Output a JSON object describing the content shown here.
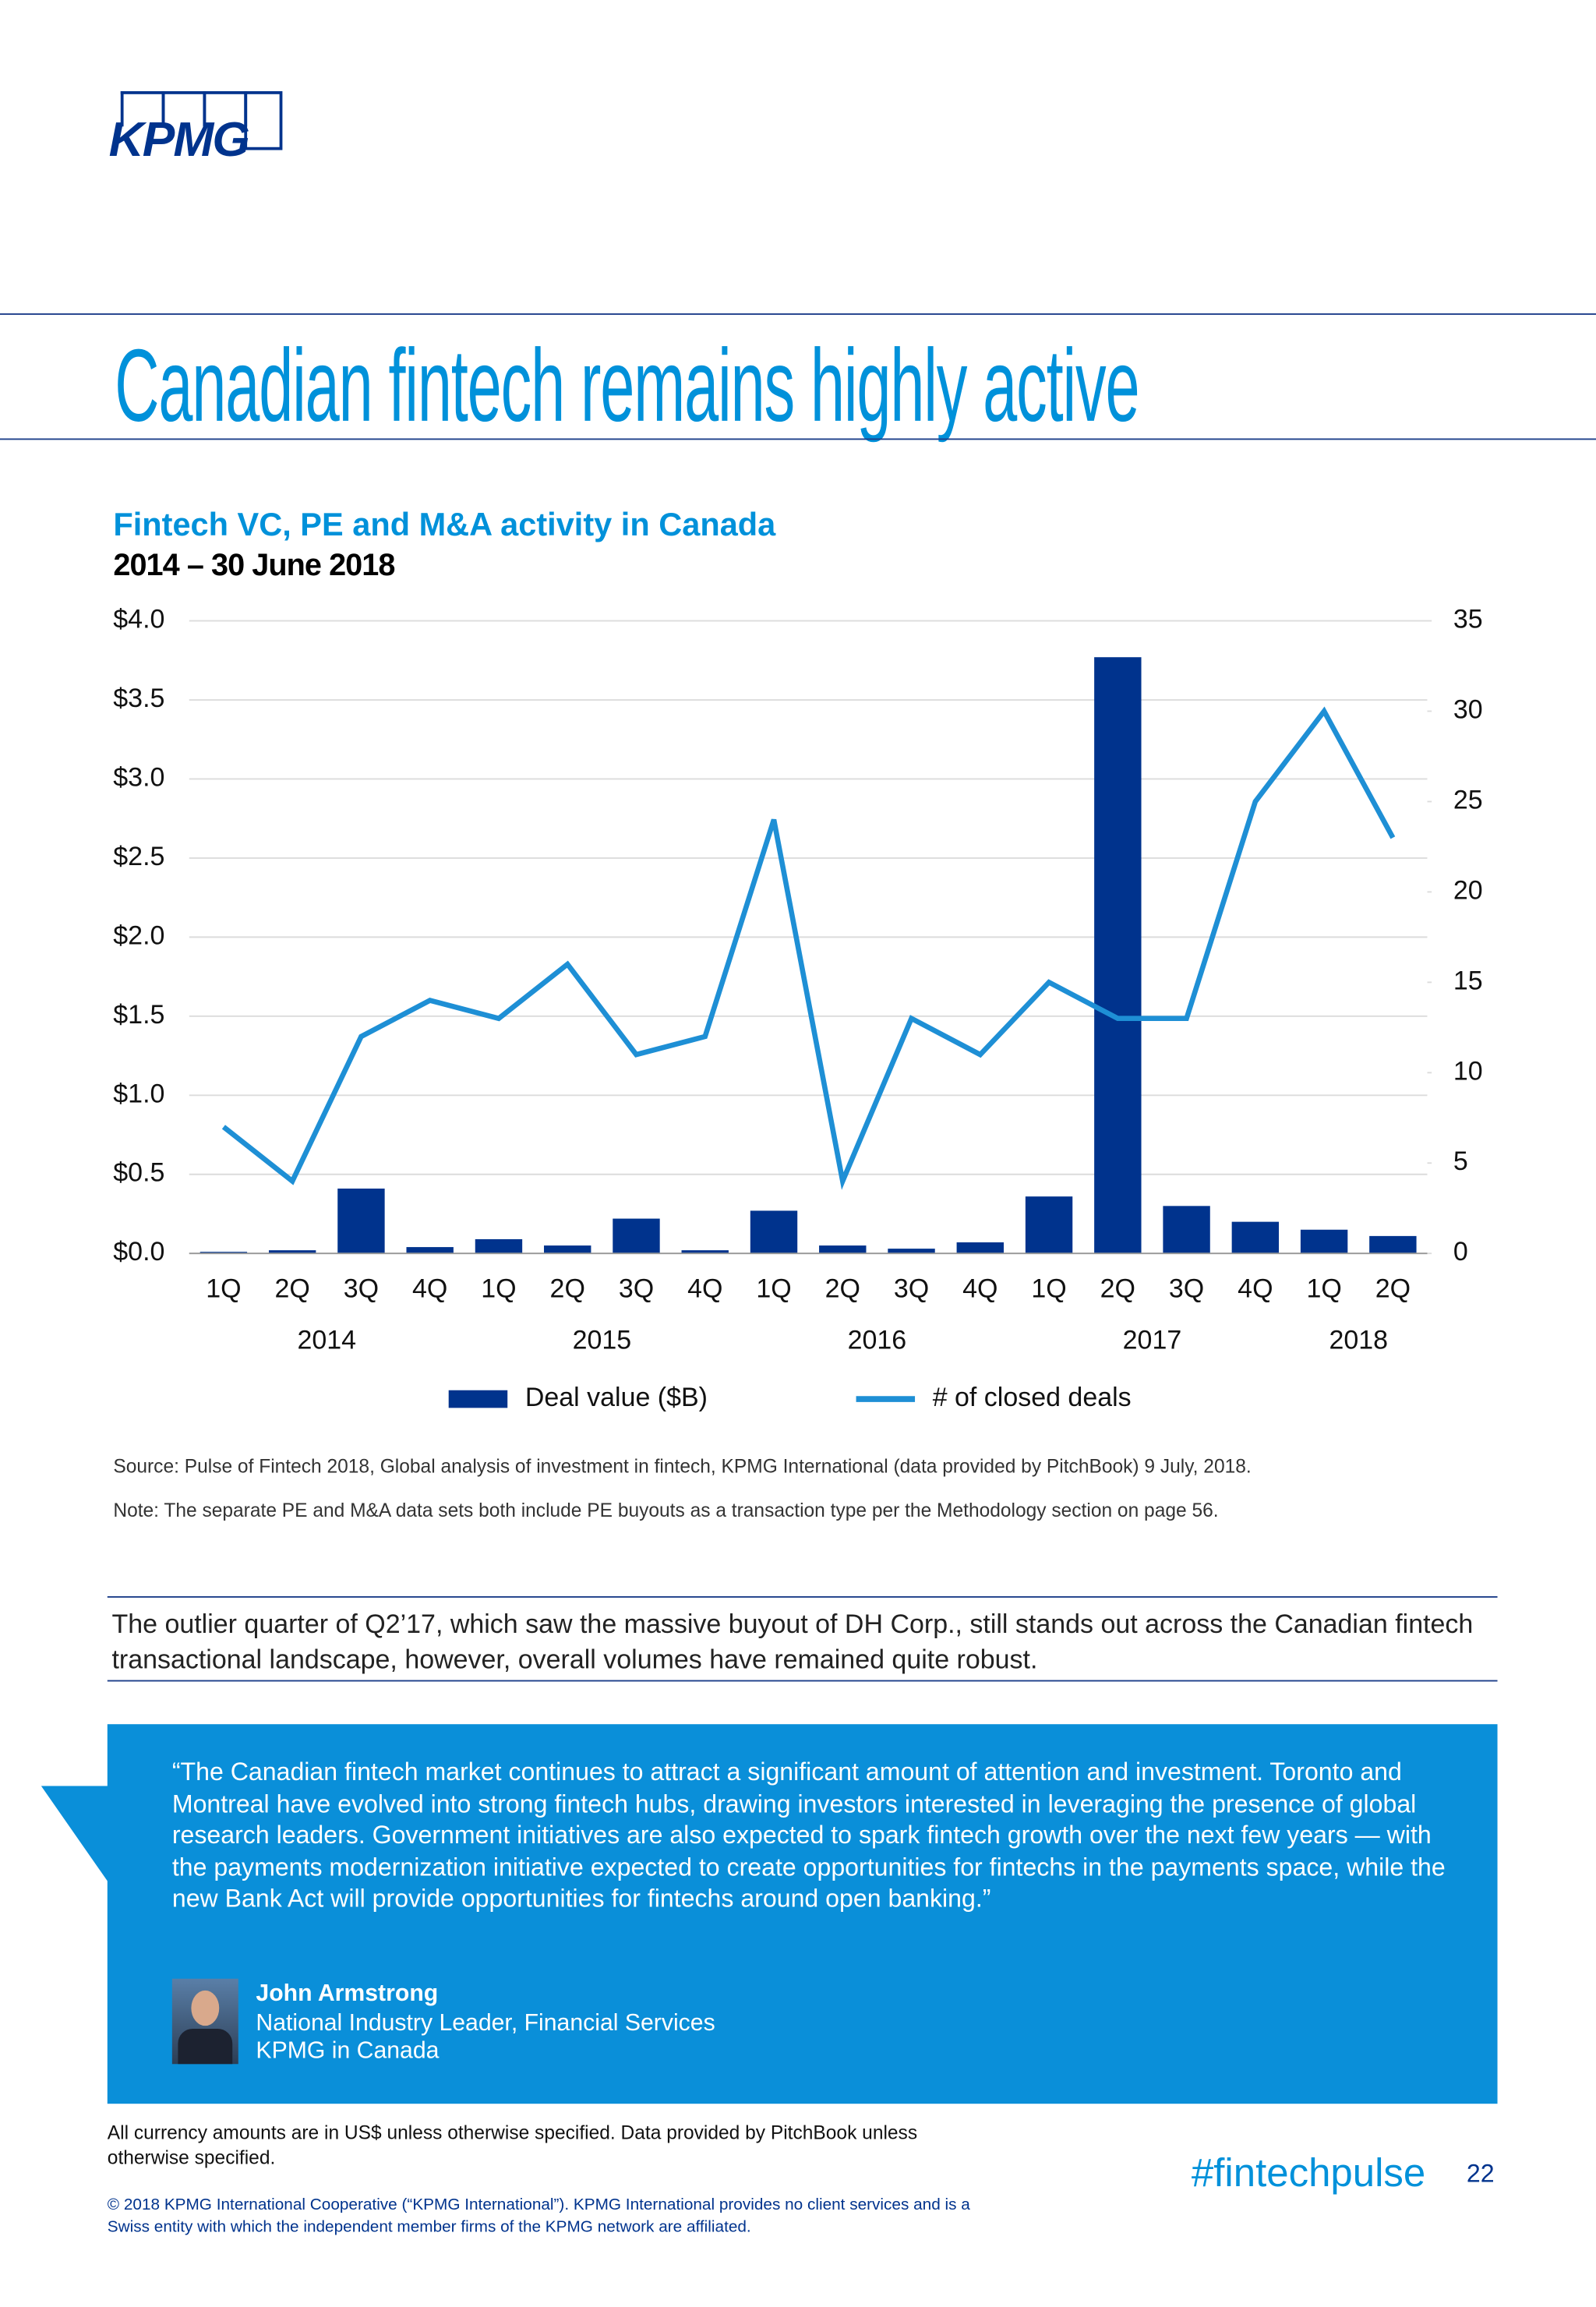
{
  "header": {
    "logo": "KPMG",
    "title": "Canadian fintech remains highly active"
  },
  "chart_data": {
    "type": "bar_line",
    "title": "Fintech VC, PE and M&A activity in Canada",
    "subtitle": "2014 – 30 June 2018",
    "categories": [
      "1Q",
      "2Q",
      "3Q",
      "4Q",
      "1Q",
      "2Q",
      "3Q",
      "4Q",
      "1Q",
      "2Q",
      "3Q",
      "4Q",
      "1Q",
      "2Q",
      "3Q",
      "4Q",
      "1Q",
      "2Q"
    ],
    "years": [
      "2014",
      "2015",
      "2016",
      "2017",
      "2018"
    ],
    "series": [
      {
        "name": "Deal value ($B)",
        "color": "#00338d",
        "type": "bar",
        "values": [
          0.01,
          0.02,
          0.41,
          0.04,
          0.09,
          0.05,
          0.22,
          0.02,
          0.27,
          0.05,
          0.03,
          0.07,
          0.36,
          3.77,
          0.3,
          0.2,
          0.15,
          0.11
        ]
      },
      {
        "name": "# of closed deals",
        "color": "#1e8fd5",
        "type": "line",
        "axis": "y2",
        "values": [
          7,
          4,
          12,
          14,
          13,
          16,
          11,
          12,
          24,
          4,
          13,
          11,
          15,
          13,
          13,
          25,
          30,
          23
        ]
      }
    ],
    "ylim": [
      0,
      4
    ],
    "yticks": [
      {
        "value": 0,
        "label": "$0.0"
      },
      {
        "value": 0.5,
        "label": "$0.5"
      },
      {
        "value": 1,
        "label": "$1.0"
      },
      {
        "value": 1.5,
        "label": "$1.5"
      },
      {
        "value": 2,
        "label": "$2.0"
      },
      {
        "value": 2.5,
        "label": "$2.5"
      },
      {
        "value": 3,
        "label": "$3.0"
      },
      {
        "value": 3.5,
        "label": "$3.5"
      },
      {
        "value": 4,
        "label": "$4.0"
      }
    ],
    "y2lim": [
      0,
      35
    ],
    "y2ticks": [
      0,
      5,
      10,
      15,
      20,
      25,
      30,
      35
    ],
    "grid": true
  },
  "notes": {
    "source": "Source: Pulse of Fintech 2018, Global analysis of investment in fintech, KPMG International (data provided by PitchBook) 9 July, 2018.",
    "note": "Note: The separate PE and M&A data sets both include PE buyouts as a transaction type per the Methodology section on page 56."
  },
  "summary": "The outlier quarter of Q2’17, which saw the massive buyout of DH Corp., still stands out across the Canadian fintech transactional landscape, however, overall volumes have remained quite robust.",
  "quote": {
    "text": "“The Canadian fintech market continues to attract a significant amount of attention and investment. Toronto and Montreal have evolved into strong fintech hubs, drawing investors interested in leveraging the presence of global research leaders. Government initiatives are also expected to spark fintech growth over the next few years — with the payments modernization initiative expected to create opportunities for fintechs in the payments space, while the new Bank Act will provide opportunities for fintechs around open banking.”",
    "name": "John Armstrong",
    "role": "National Industry Leader, Financial Services",
    "org": "KPMG in Canada"
  },
  "footer": {
    "disclaimer": "All currency amounts are in US$ unless otherwise specified. Data provided by PitchBook unless otherwise specified.",
    "copyright": "© 2018 KPMG International Cooperative (“KPMG International”). KPMG International provides no client services and is a Swiss entity with which the independent member firms of the KPMG network are affiliated.",
    "hashtag": "#fintechpulse",
    "page": "22"
  }
}
